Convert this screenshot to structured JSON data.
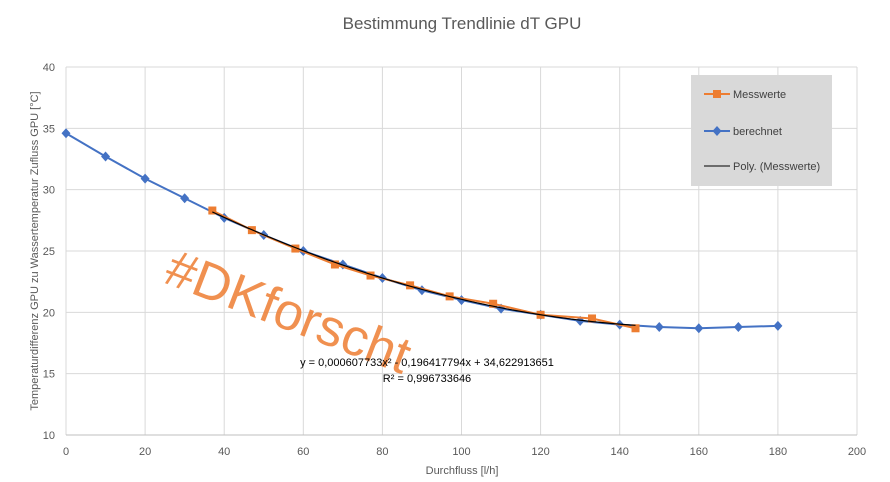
{
  "chart_data": {
    "type": "scatter",
    "title": "Bestimmung Trendlinie dT GPU",
    "xlabel": "Durchfluss [l/h]",
    "ylabel": "Temperaturdifferenz GPU zu Wassertemperatur Zufluss GPU [°C]",
    "xlim": [
      0,
      200
    ],
    "ylim": [
      10,
      40
    ],
    "xticks": [
      "0",
      "20",
      "40",
      "60",
      "80",
      "100",
      "120",
      "140",
      "160",
      "180",
      "200"
    ],
    "yticks": [
      "10",
      "15",
      "20",
      "25",
      "30",
      "35",
      "40"
    ],
    "grid": true,
    "legend_position": "top-right",
    "series": [
      {
        "name": "Messwerte",
        "color": "#ED7D31",
        "marker": "square",
        "x": [
          37,
          47,
          58,
          68,
          77,
          87,
          97,
          108,
          120,
          133,
          144
        ],
        "y": [
          28.3,
          26.7,
          25.2,
          23.9,
          23.0,
          22.2,
          21.3,
          20.7,
          19.8,
          19.5,
          18.7
        ]
      },
      {
        "name": "berechnet",
        "color": "#4472C4",
        "marker": "diamond",
        "x": [
          0,
          10,
          20,
          30,
          40,
          50,
          60,
          70,
          80,
          90,
          100,
          110,
          120,
          130,
          140,
          150,
          160,
          170,
          180
        ],
        "y": [
          34.6,
          32.7,
          30.9,
          29.3,
          27.7,
          26.3,
          25.0,
          23.9,
          22.8,
          21.8,
          21.0,
          20.3,
          19.8,
          19.3,
          19.0,
          18.8,
          18.7,
          18.8,
          18.9
        ]
      }
    ],
    "trendline": {
      "name": "Poly. (Messwerte)",
      "color": "#000000",
      "type": "polynomial-2",
      "x_range": [
        37,
        144
      ],
      "coefficients": [
        0.000607733,
        -0.196417794,
        34.622913651
      ],
      "equation": "y = 0,000607733x² - 0,196417794x + 34,622913651",
      "r_squared": "R² = 0,996733646"
    },
    "watermark": "#DKforscht"
  }
}
